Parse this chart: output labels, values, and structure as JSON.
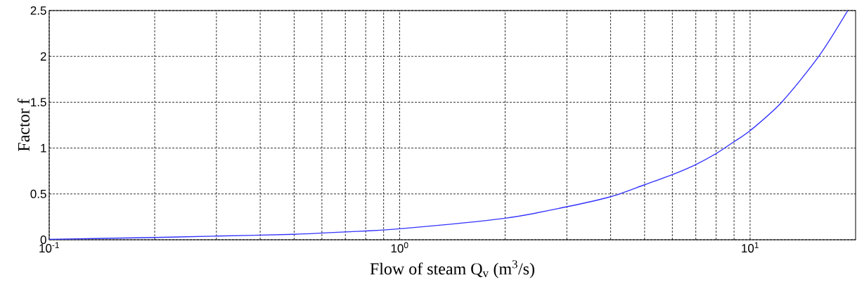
{
  "chart_data": {
    "type": "line",
    "xlabel": "Flow of steam Q$_{v}$ (m$^{3}$/s)",
    "ylabel": "Factor f",
    "log": "x",
    "xlim": [
      0.1,
      20
    ],
    "ylim": [
      0,
      2.5
    ],
    "xticks": [
      {
        "value": 0.1,
        "label": "10$^{-1}$"
      },
      {
        "value": 1,
        "label": "10$^{0}$"
      },
      {
        "value": 10,
        "label": "10$^{1}$"
      }
    ],
    "yticks": [
      0,
      0.5,
      1,
      1.5,
      2,
      2.5
    ],
    "grid": true,
    "line_style": "solid",
    "series": [
      {
        "color": "#3333ff",
        "x": [
          0.1,
          0.2,
          0.3,
          0.5,
          0.7,
          1,
          2,
          3,
          4,
          5,
          6,
          7,
          8,
          9,
          10,
          12.3,
          15.7,
          19
        ],
        "values": [
          0.005,
          0.025,
          0.04,
          0.06,
          0.085,
          0.12,
          0.235,
          0.36,
          0.47,
          0.6,
          0.71,
          0.82,
          0.94,
          1.07,
          1.19,
          1.5,
          2,
          2.5
        ]
      }
    ]
  }
}
